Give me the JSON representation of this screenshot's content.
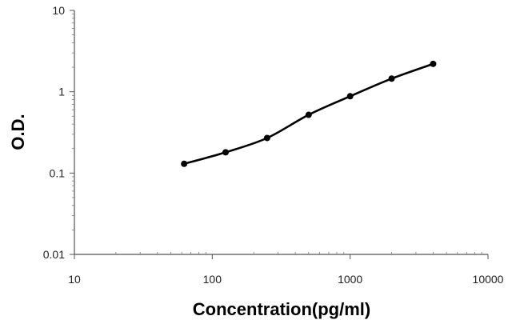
{
  "chart_data": {
    "type": "line",
    "title": "",
    "xlabel": "Concentration(pg/ml)",
    "ylabel": "O.D.",
    "x_scale": "log",
    "y_scale": "log",
    "xlim": [
      10,
      10000
    ],
    "ylim": [
      0.01,
      10
    ],
    "x_ticks": [
      10,
      100,
      1000,
      10000
    ],
    "x_tick_labels": [
      "10",
      "100",
      "1000",
      "10000"
    ],
    "y_ticks": [
      0.01,
      0.1,
      1,
      10
    ],
    "y_tick_labels": [
      "0.01",
      "0.1",
      "1",
      "10"
    ],
    "grid": false,
    "legend": "none",
    "series": [
      {
        "x": [
          62.5,
          125,
          250,
          500,
          1000,
          2000,
          4000
        ],
        "y": [
          0.13,
          0.18,
          0.27,
          0.52,
          0.88,
          1.45,
          2.2
        ],
        "color": "#000000",
        "marker": "circle",
        "fit_curve": true
      }
    ]
  }
}
